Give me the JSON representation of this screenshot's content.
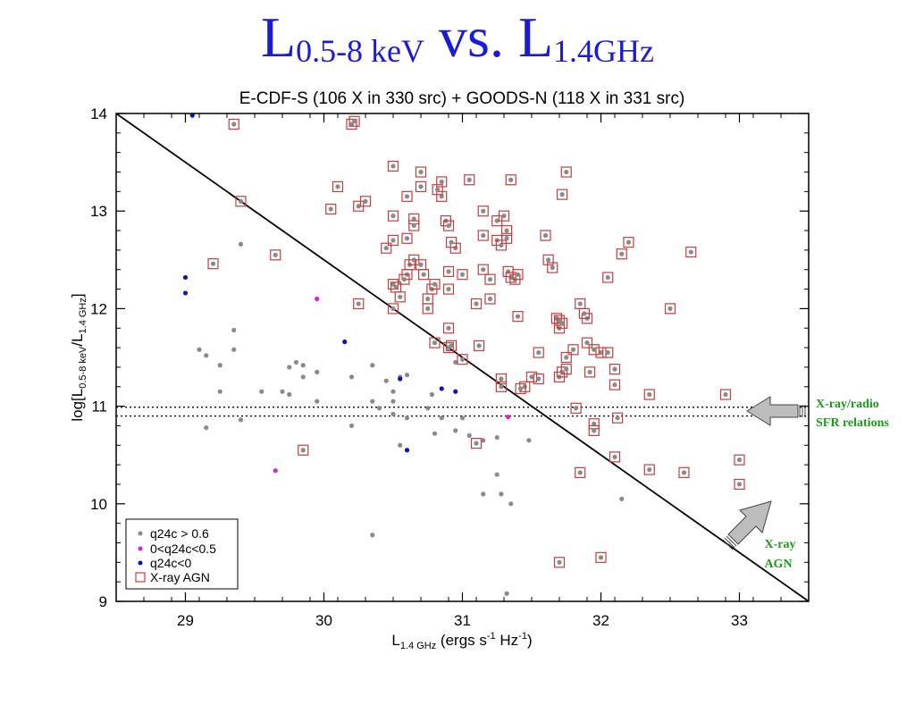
{
  "slide": {
    "title_main": "L",
    "title_sub1": "0.5-8 keV",
    "title_vs": " vs. L",
    "title_sub2": "1.4GHz"
  },
  "chart_data": {
    "type": "scatter",
    "title": "E-CDF-S (106 X in 330 src) + GOODS-N (118 X in 331 src)",
    "xlabel_main": "L",
    "xlabel_sub": "1.4 GHz",
    "xlabel_rest": " (ergs s",
    "xlabel_sup1": "-1",
    "xlabel_mid": " Hz",
    "xlabel_sup2": "-1",
    "xlabel_end": ")",
    "ylabel_main": "log[L",
    "ylabel_sub1": "0.5-8 keV",
    "ylabel_mid": "/L",
    "ylabel_sub2": "1.4 GHz",
    "ylabel_end": "]",
    "xlim": [
      28.5,
      33.5
    ],
    "ylim": [
      9,
      14
    ],
    "xticks": [
      "29",
      "30",
      "31",
      "32",
      "33"
    ],
    "yticks": [
      "9",
      "10",
      "11",
      "12",
      "13",
      "14"
    ],
    "diagonal_line": [
      [
        28.5,
        14.0
      ],
      [
        33.5,
        9.0
      ]
    ],
    "dotted_lines_y": [
      10.99,
      10.9
    ],
    "legend": {
      "position": "bottom-left",
      "entries": [
        "q24c > 0.6",
        "0<q24c<0.5",
        "q24c<0",
        "X-ray AGN"
      ]
    },
    "colors": {
      "gray": "#8a8a8a",
      "magenta": "#e020d0",
      "blue": "#1010c0",
      "agn_box": "#c83c3c"
    },
    "annotations": [
      {
        "text_line1": "X-ray/radio",
        "text_line2": "SFR relations"
      },
      {
        "text_line1": "X-ray",
        "text_line2": "AGN"
      }
    ],
    "series": [
      {
        "name": "q24c > 0.6",
        "color": "gray",
        "points": [
          [
            29.1,
            11.58
          ],
          [
            29.15,
            11.52
          ],
          [
            29.25,
            11.42
          ],
          [
            29.35,
            11.58
          ],
          [
            29.35,
            11.78
          ],
          [
            29.4,
            12.66
          ],
          [
            29.25,
            11.15
          ],
          [
            29.15,
            10.78
          ],
          [
            29.4,
            10.86
          ],
          [
            29.55,
            11.15
          ],
          [
            29.7,
            11.15
          ],
          [
            29.75,
            11.4
          ],
          [
            29.8,
            11.45
          ],
          [
            29.75,
            11.12
          ],
          [
            29.85,
            11.3
          ],
          [
            29.85,
            11.42
          ],
          [
            29.95,
            11.35
          ],
          [
            29.95,
            11.05
          ],
          [
            30.2,
            11.3
          ],
          [
            30.2,
            10.8
          ],
          [
            30.35,
            11.42
          ],
          [
            30.35,
            11.05
          ],
          [
            30.4,
            10.98
          ],
          [
            30.5,
            11.05
          ],
          [
            30.55,
            11.3
          ],
          [
            30.6,
            11.32
          ],
          [
            30.45,
            11.26
          ],
          [
            30.5,
            11.15
          ],
          [
            30.5,
            10.92
          ],
          [
            30.6,
            10.88
          ],
          [
            30.55,
            10.6
          ],
          [
            30.75,
            10.98
          ],
          [
            30.78,
            11.12
          ],
          [
            30.8,
            10.72
          ],
          [
            30.85,
            10.88
          ],
          [
            30.95,
            10.75
          ],
          [
            31.05,
            10.7
          ],
          [
            31.0,
            10.88
          ],
          [
            31.15,
            10.65
          ],
          [
            31.25,
            10.68
          ],
          [
            31.25,
            10.3
          ],
          [
            31.15,
            10.1
          ],
          [
            31.28,
            10.1
          ],
          [
            31.35,
            10.0
          ],
          [
            31.48,
            10.65
          ],
          [
            30.35,
            9.68
          ],
          [
            31.32,
            9.08
          ],
          [
            32.15,
            10.05
          ],
          [
            30.95,
            11.45
          ]
        ]
      },
      {
        "name": "0<q24c<0.5",
        "color": "magenta",
        "points": [
          [
            29.95,
            12.1
          ],
          [
            29.65,
            10.34
          ],
          [
            31.33,
            10.89
          ]
        ]
      },
      {
        "name": "q24c<0",
        "color": "blue",
        "points": [
          [
            29.05,
            13.98
          ],
          [
            29.0,
            12.32
          ],
          [
            29.0,
            12.16
          ],
          [
            30.15,
            11.66
          ],
          [
            30.55,
            11.28
          ],
          [
            30.6,
            10.55
          ],
          [
            30.85,
            11.18
          ],
          [
            30.95,
            11.15
          ]
        ]
      },
      {
        "name": "X-ray AGN",
        "color": "gray",
        "boxed": true,
        "points": [
          [
            29.35,
            13.89
          ],
          [
            29.4,
            13.1
          ],
          [
            29.2,
            12.46
          ],
          [
            29.65,
            12.55
          ],
          [
            29.85,
            10.55
          ],
          [
            30.2,
            13.89
          ],
          [
            30.22,
            13.92
          ],
          [
            30.1,
            13.25
          ],
          [
            30.05,
            13.02
          ],
          [
            30.25,
            13.05
          ],
          [
            30.3,
            13.1
          ],
          [
            30.25,
            12.05
          ],
          [
            30.45,
            12.62
          ],
          [
            30.5,
            13.46
          ],
          [
            30.5,
            12.95
          ],
          [
            30.5,
            12.7
          ],
          [
            30.5,
            12.25
          ],
          [
            30.5,
            12.0
          ],
          [
            30.55,
            12.12
          ],
          [
            30.6,
            12.35
          ],
          [
            30.62,
            12.45
          ],
          [
            30.58,
            12.3
          ],
          [
            30.6,
            13.15
          ],
          [
            30.65,
            12.92
          ],
          [
            30.65,
            12.5
          ],
          [
            30.65,
            12.85
          ],
          [
            30.7,
            13.25
          ],
          [
            30.7,
            13.4
          ],
          [
            30.7,
            12.45
          ],
          [
            30.72,
            12.35
          ],
          [
            30.75,
            12.1
          ],
          [
            30.75,
            12.0
          ],
          [
            30.78,
            12.2
          ],
          [
            30.8,
            12.25
          ],
          [
            30.8,
            11.65
          ],
          [
            30.85,
            13.3
          ],
          [
            30.85,
            13.15
          ],
          [
            30.88,
            12.9
          ],
          [
            30.9,
            12.85
          ],
          [
            30.9,
            12.38
          ],
          [
            30.9,
            12.2
          ],
          [
            30.9,
            11.8
          ],
          [
            30.9,
            11.6
          ],
          [
            30.92,
            11.62
          ],
          [
            30.95,
            12.62
          ],
          [
            31.0,
            12.35
          ],
          [
            31.0,
            11.48
          ],
          [
            31.05,
            13.32
          ],
          [
            31.1,
            12.05
          ],
          [
            31.15,
            13.0
          ],
          [
            31.15,
            12.75
          ],
          [
            31.15,
            12.4
          ],
          [
            31.2,
            12.3
          ],
          [
            31.2,
            12.1
          ],
          [
            31.25,
            12.9
          ],
          [
            31.25,
            12.7
          ],
          [
            31.28,
            12.65
          ],
          [
            31.3,
            12.95
          ],
          [
            31.32,
            12.72
          ],
          [
            31.32,
            12.8
          ],
          [
            31.35,
            13.32
          ],
          [
            31.33,
            12.38
          ],
          [
            31.35,
            12.32
          ],
          [
            31.38,
            12.3
          ],
          [
            31.4,
            12.35
          ],
          [
            31.4,
            11.92
          ],
          [
            31.45,
            11.2
          ],
          [
            31.5,
            11.3
          ],
          [
            31.55,
            11.28
          ],
          [
            31.55,
            11.55
          ],
          [
            31.6,
            12.75
          ],
          [
            31.62,
            12.5
          ],
          [
            31.65,
            12.42
          ],
          [
            31.68,
            11.9
          ],
          [
            31.7,
            11.88
          ],
          [
            31.7,
            11.8
          ],
          [
            31.72,
            11.85
          ],
          [
            31.7,
            11.3
          ],
          [
            31.72,
            11.35
          ],
          [
            31.75,
            11.5
          ],
          [
            31.75,
            11.38
          ],
          [
            31.8,
            11.58
          ],
          [
            31.72,
            13.17
          ],
          [
            31.75,
            13.4
          ],
          [
            31.82,
            10.98
          ],
          [
            31.9,
            11.65
          ],
          [
            31.9,
            11.9
          ],
          [
            31.88,
            11.95
          ],
          [
            31.85,
            12.05
          ],
          [
            31.92,
            11.35
          ],
          [
            31.95,
            10.82
          ],
          [
            31.95,
            10.75
          ],
          [
            32.0,
            11.55
          ],
          [
            32.05,
            11.55
          ],
          [
            32.05,
            12.32
          ],
          [
            32.1,
            11.38
          ],
          [
            32.1,
            11.22
          ],
          [
            32.12,
            10.88
          ],
          [
            32.15,
            12.56
          ],
          [
            32.2,
            12.68
          ],
          [
            32.0,
            9.45
          ],
          [
            31.85,
            10.32
          ],
          [
            32.1,
            10.48
          ],
          [
            32.35,
            10.35
          ],
          [
            32.35,
            11.12
          ],
          [
            32.5,
            12.0
          ],
          [
            32.6,
            10.32
          ],
          [
            32.65,
            12.58
          ],
          [
            32.9,
            11.12
          ],
          [
            33.0,
            10.45
          ],
          [
            33.0,
            10.2
          ],
          [
            31.7,
            9.4
          ],
          [
            31.1,
            10.62
          ],
          [
            31.28,
            11.28
          ],
          [
            31.28,
            11.2
          ],
          [
            31.42,
            11.18
          ],
          [
            31.12,
            11.62
          ],
          [
            30.52,
            12.22
          ],
          [
            30.82,
            13.22
          ],
          [
            30.92,
            12.68
          ],
          [
            30.6,
            12.72
          ],
          [
            31.95,
            11.58
          ]
        ]
      }
    ]
  }
}
